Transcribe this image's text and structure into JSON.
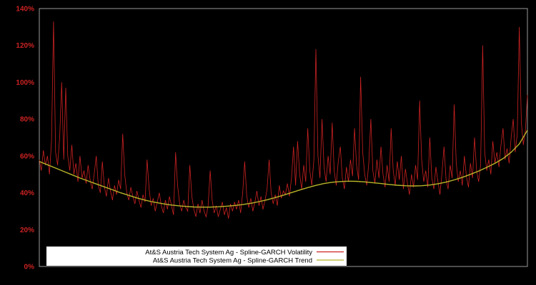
{
  "chart_data": {
    "type": "line",
    "title": "",
    "xlabel": "",
    "ylabel": "",
    "x_range": [
      0,
      1
    ],
    "ylim": [
      0,
      140
    ],
    "y_ticks": [
      "0%",
      "20%",
      "40%",
      "60%",
      "80%",
      "100%",
      "120%",
      "140%"
    ],
    "y_tick_values": [
      0,
      20,
      40,
      60,
      80,
      100,
      120,
      140
    ],
    "grid": "off",
    "background": "#000000",
    "frame_color": "#9a9a9a",
    "axis_label_color": "#cc2222",
    "legend_position": "bottom-center",
    "legend_background": "#ffffff",
    "series": [
      {
        "name": "At&S Austria Tech System Ag - Spline-GARCH Volatility",
        "color": "#cc2222",
        "width": 0.8,
        "values": [
          58,
          52,
          63,
          55,
          60,
          50,
          68,
          133,
          62,
          55,
          70,
          100,
          58,
          97,
          60,
          52,
          66,
          50,
          56,
          46,
          60,
          48,
          52,
          45,
          55,
          47,
          42,
          50,
          60,
          44,
          40,
          57,
          43,
          38,
          48,
          41,
          36,
          44,
          39,
          47,
          42,
          72,
          50,
          40,
          36,
          43,
          38,
          34,
          41,
          36,
          32,
          39,
          35,
          58,
          42,
          33,
          37,
          30,
          35,
          40,
          33,
          29,
          36,
          31,
          38,
          33,
          28,
          62,
          44,
          34,
          30,
          36,
          32,
          30,
          55,
          38,
          31,
          27,
          34,
          29,
          36,
          30,
          27,
          33,
          52,
          36,
          29,
          33,
          27,
          31,
          35,
          28,
          32,
          26,
          34,
          30,
          35,
          31,
          36,
          29,
          40,
          57,
          38,
          32,
          37,
          30,
          35,
          41,
          33,
          38,
          31,
          36,
          42,
          58,
          40,
          34,
          39,
          33,
          44,
          37,
          41,
          39,
          45,
          38,
          48,
          65,
          44,
          68,
          50,
          42,
          55,
          46,
          75,
          52,
          44,
          58,
          118,
          60,
          48,
          80,
          54,
          46,
          60,
          50,
          78,
          52,
          44,
          57,
          65,
          48,
          42,
          54,
          46,
          58,
          49,
          75,
          55,
          47,
          103,
          62,
          50,
          44,
          56,
          80,
          52,
          45,
          58,
          48,
          65,
          50,
          43,
          55,
          46,
          75,
          52,
          44,
          57,
          47,
          60,
          42,
          53,
          45,
          39,
          50,
          43,
          55,
          47,
          90,
          58,
          46,
          52,
          43,
          70,
          48,
          42,
          54,
          46,
          39,
          51,
          65,
          47,
          42,
          55,
          48,
          88,
          56,
          46,
          52,
          44,
          60,
          49,
          43,
          56,
          48,
          70,
          52,
          46,
          55,
          120,
          62,
          52,
          58,
          50,
          68,
          56,
          62,
          54,
          66,
          75,
          58,
          64,
          56,
          70,
          80,
          62,
          72,
          130,
          78,
          66,
          74,
          93
        ]
      },
      {
        "name": "At&S Austria Tech System Ag - Spline-GARCH Trend",
        "color": "#b8b428",
        "width": 1.4,
        "values": [
          57,
          55.2,
          53.4,
          51.6,
          49.8,
          48,
          46.4,
          44.8,
          43.2,
          41.6,
          40,
          38.6,
          37.2,
          36,
          35,
          34.2,
          33.5,
          33,
          32.6,
          32.3,
          32.2,
          32.2,
          32.4,
          32.7,
          33.1,
          33.6,
          34.3,
          35.2,
          36.2,
          37.4,
          38.7,
          40.1,
          41.5,
          42.8,
          44,
          45,
          45.7,
          46.1,
          46.3,
          46.2,
          45.9,
          45.5,
          45,
          44.5,
          44.1,
          43.8,
          43.7,
          43.8,
          44.2,
          44.9,
          45.8,
          47,
          48.4,
          50,
          51.8,
          53.8,
          56,
          58.6,
          62,
          66.5,
          74
        ]
      }
    ]
  }
}
